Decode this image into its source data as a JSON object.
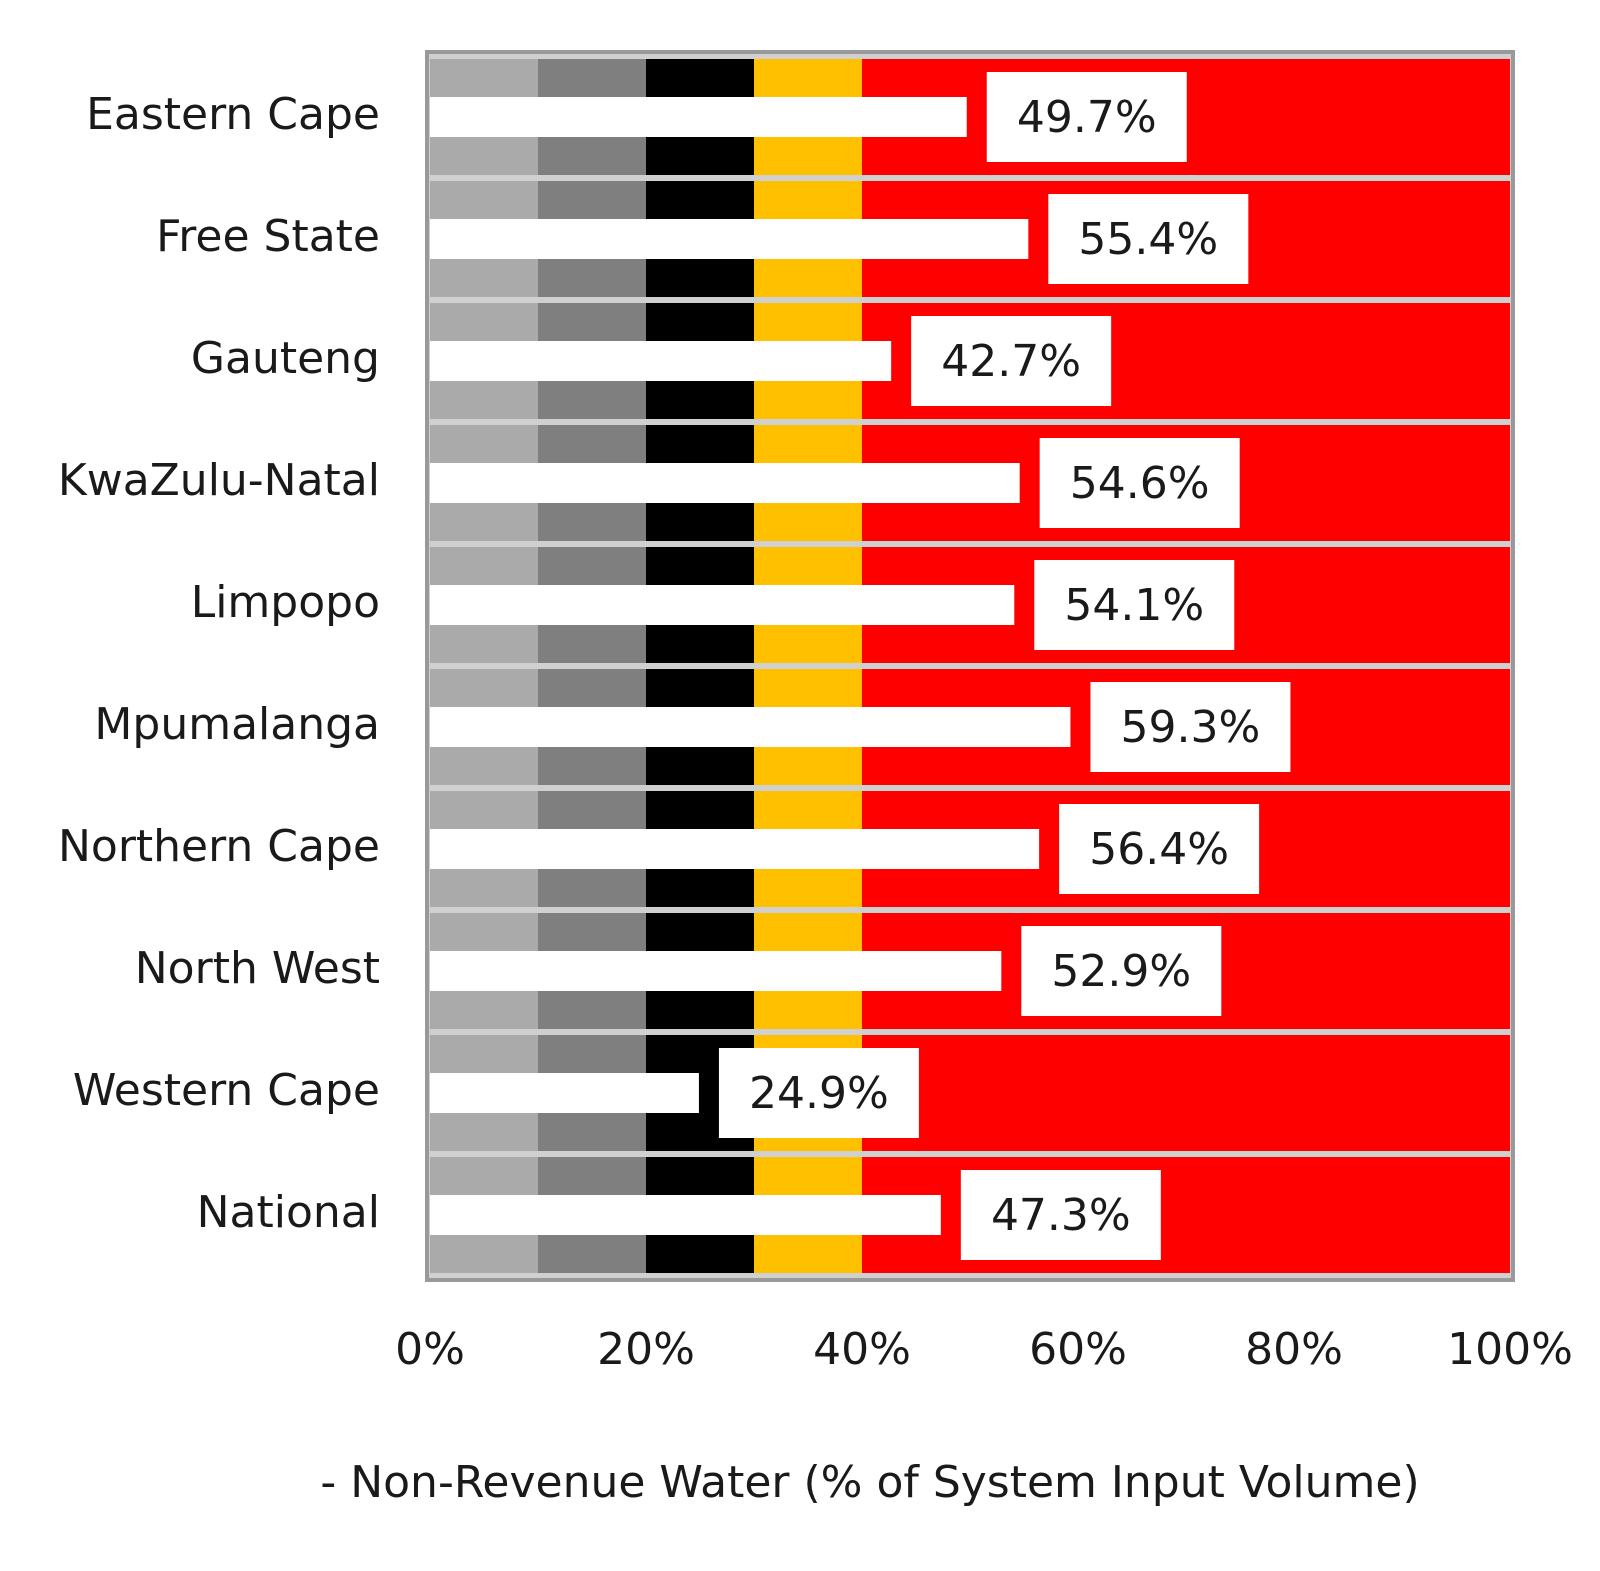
{
  "chart_data": {
    "type": "bar",
    "orientation": "horizontal",
    "categories": [
      "Eastern Cape",
      "Free State",
      "Gauteng",
      "KwaZulu-Natal",
      "Limpopo",
      "Mpumalanga",
      "Northern Cape",
      "North West",
      "Western Cape",
      "National"
    ],
    "values": [
      49.7,
      55.4,
      42.7,
      54.6,
      54.1,
      59.3,
      56.4,
      52.9,
      24.9,
      47.3
    ],
    "value_labels": [
      "49.7%",
      "55.4%",
      "42.7%",
      "54.6%",
      "54.1%",
      "59.3%",
      "56.4%",
      "52.9%",
      "24.9%",
      "47.3%"
    ],
    "color": "#ffffff",
    "bands": [
      {
        "range": [
          0,
          10
        ],
        "color": "#aaaaaa"
      },
      {
        "range": [
          10,
          20
        ],
        "color": "#7f7f7f"
      },
      {
        "range": [
          20,
          30
        ],
        "color": "#000000"
      },
      {
        "range": [
          30,
          40
        ],
        "color": "#ffc000"
      },
      {
        "range": [
          40,
          100
        ],
        "color": "#ff0000"
      }
    ],
    "xlim": [
      0,
      100
    ],
    "xticks": [
      {
        "value": 0,
        "label": "0%"
      },
      {
        "value": 20,
        "label": "20%"
      },
      {
        "value": 40,
        "label": "40%"
      },
      {
        "value": 60,
        "label": "60%"
      },
      {
        "value": 80,
        "label": "80%"
      },
      {
        "value": 100,
        "label": "100%"
      }
    ],
    "x_label": "- Non-Revenue Water (% of System Input Volume)"
  }
}
